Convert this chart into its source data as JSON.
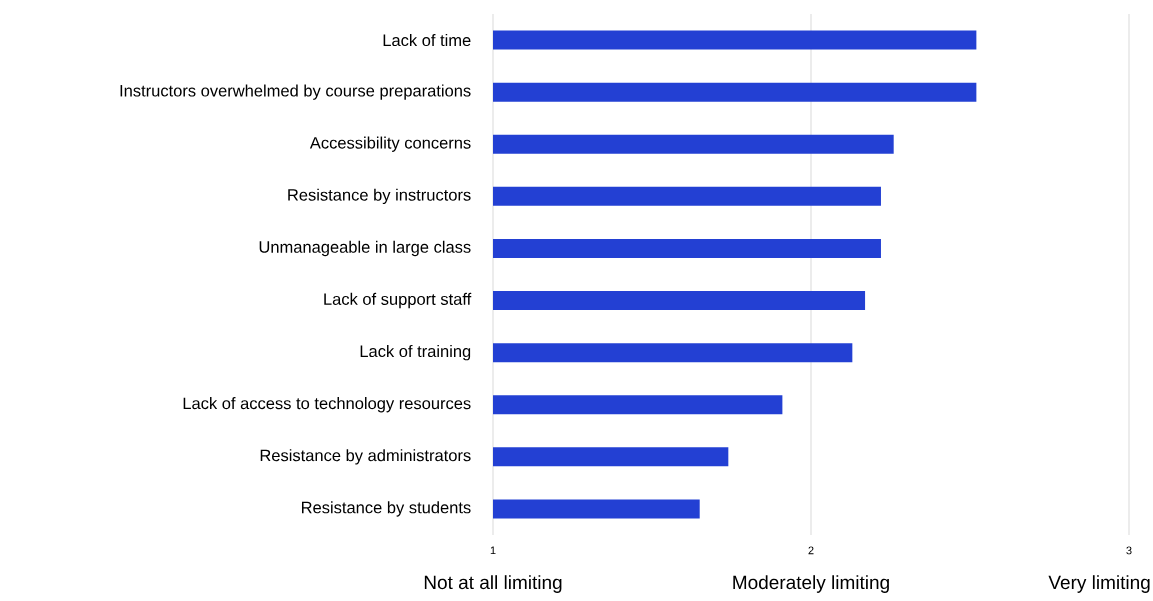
{
  "chart_data": {
    "type": "bar",
    "orientation": "horizontal",
    "categories": [
      "Lack of time",
      "Instructors overwhelmed by course preparations",
      "Accessibility concerns",
      "Resistance by instructors",
      "Unmanageable in large class",
      "Lack of support staff",
      "Lack of training",
      "Lack of access to technology resources",
      "Resistance by administrators",
      "Resistance by students"
    ],
    "values": [
      2.52,
      2.52,
      2.26,
      2.22,
      2.22,
      2.17,
      2.13,
      1.91,
      1.74,
      1.65
    ],
    "color": "#2340d3",
    "xlim": [
      1,
      3
    ],
    "xticks": [
      1,
      2,
      3
    ],
    "grid": "x",
    "annotations": [
      "Not at all limiting",
      "Moderately limiting",
      "Very limiting"
    ]
  }
}
